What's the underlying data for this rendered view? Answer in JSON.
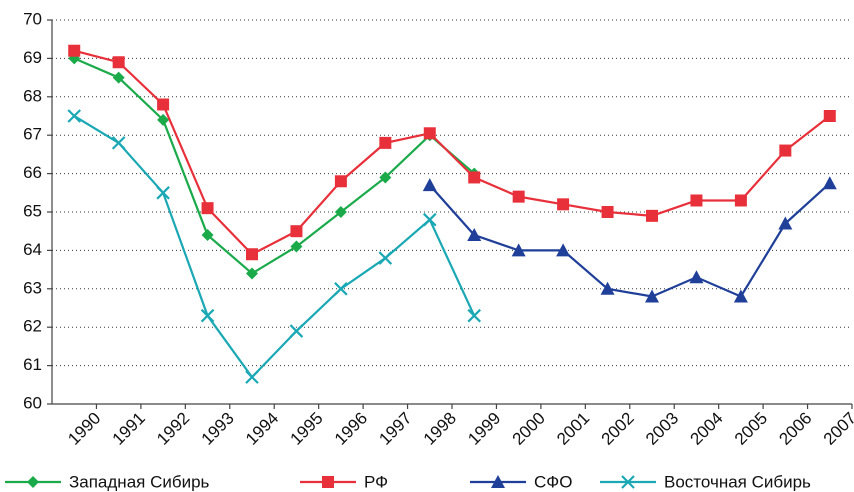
{
  "chart_data": {
    "type": "line",
    "categories": [
      "1990",
      "1991",
      "1992",
      "1993",
      "1994",
      "1995",
      "1996",
      "1997",
      "1998",
      "1999",
      "2000",
      "2001",
      "2002",
      "2003",
      "2004",
      "2005",
      "2006",
      "2007"
    ],
    "series": [
      {
        "name": "Западная Сибирь",
        "color": "#1aaa4a",
        "marker": "diamond",
        "values": [
          69.0,
          68.5,
          67.4,
          64.4,
          63.4,
          64.1,
          65.0,
          65.9,
          67.0,
          66.0,
          null,
          null,
          null,
          null,
          null,
          null,
          null,
          null
        ]
      },
      {
        "name": "РФ",
        "color": "#e8303a",
        "marker": "square",
        "values": [
          69.2,
          68.9,
          67.8,
          65.1,
          63.9,
          64.5,
          65.8,
          66.8,
          67.05,
          65.9,
          65.4,
          65.2,
          65.0,
          64.9,
          65.3,
          65.3,
          66.6,
          67.5
        ]
      },
      {
        "name": "СФО",
        "color": "#1f3f99",
        "marker": "triangle",
        "values": [
          null,
          null,
          null,
          null,
          null,
          null,
          null,
          null,
          65.7,
          64.4,
          64.0,
          64.0,
          63.0,
          62.8,
          63.3,
          62.8,
          64.7,
          65.75
        ]
      },
      {
        "name": "Восточная Сибирь",
        "color": "#1aa8b4",
        "marker": "x",
        "values": [
          67.5,
          66.8,
          65.5,
          62.3,
          60.7,
          61.9,
          63.0,
          63.8,
          64.8,
          62.3,
          null,
          null,
          null,
          null,
          null,
          null,
          null,
          null
        ]
      }
    ],
    "ylim": [
      60,
      70
    ],
    "yticks": [
      60,
      61,
      62,
      63,
      64,
      65,
      66,
      67,
      68,
      69,
      70
    ],
    "grid": true
  }
}
